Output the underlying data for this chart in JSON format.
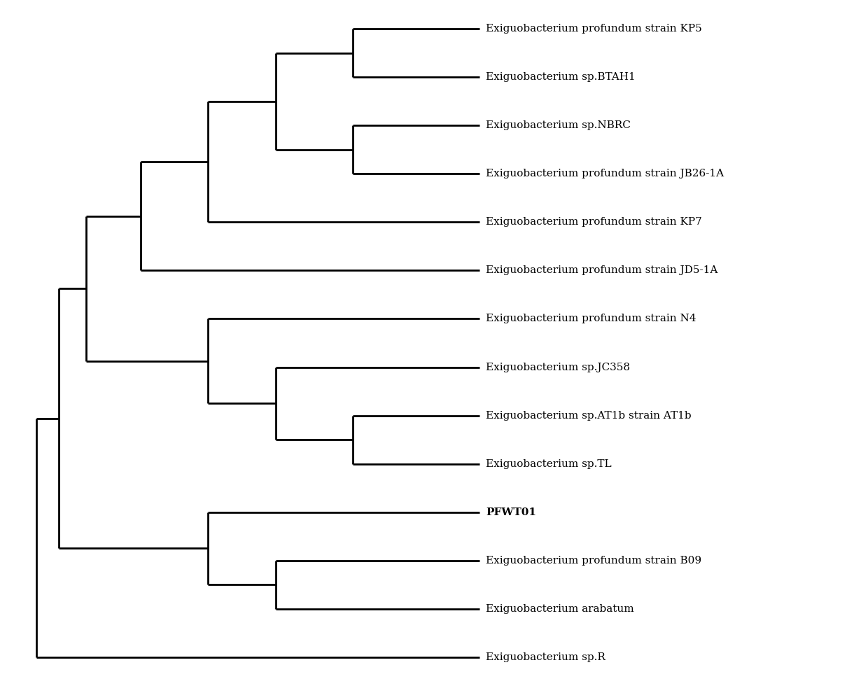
{
  "taxa": [
    "Exiguobacterium profundum strain KP5",
    "Exiguobacterium sp.BTAH1",
    "Exiguobacterium sp.NBRC",
    "Exiguobacterium profundum strain JB26-1A",
    "Exiguobacterium profundum strain KP7",
    "Exiguobacterium profundum strain JD5-1A",
    "Exiguobacterium profundum strain N4",
    "Exiguobacterium sp.JC358",
    "Exiguobacterium sp.AT1b strain AT1b",
    "Exiguobacterium sp.TL",
    "PFWT01",
    "Exiguobacterium profundum strain B09",
    "Exiguobacterium arabatum",
    "Exiguobacterium sp.R"
  ],
  "bold_taxa": [
    "PFWT01"
  ],
  "background_color": "#ffffff",
  "line_color": "#000000",
  "line_width": 2.0,
  "font_size": 11,
  "font_family": "serif"
}
